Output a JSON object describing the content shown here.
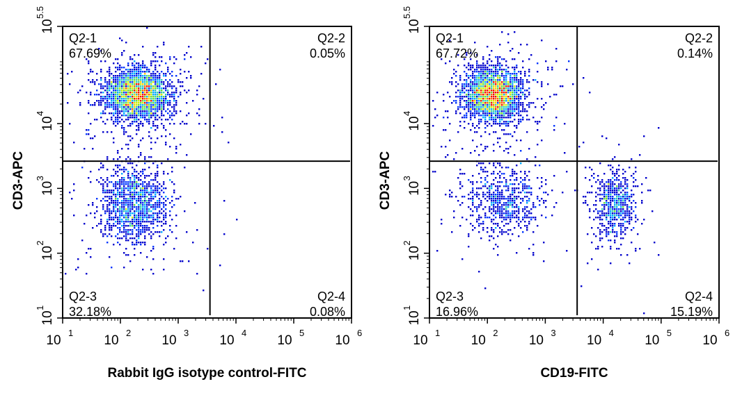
{
  "chart_data": [
    {
      "type": "scatter",
      "subtype": "flow-cytometry-density-dot-plot",
      "xlabel": "Rabbit IgG isotype control-FITC",
      "ylabel": "CD3-APC",
      "xscale": "log10",
      "yscale": "log10",
      "xlim_exp": [
        1,
        6
      ],
      "ylim_exp": [
        1,
        5.5
      ],
      "x_ticks": [
        {
          "base": "10",
          "exp": "1"
        },
        {
          "base": "10",
          "exp": "2"
        },
        {
          "base": "10",
          "exp": "3"
        },
        {
          "base": "10",
          "exp": "4"
        },
        {
          "base": "10",
          "exp": "5"
        },
        {
          "base": "10",
          "exp": "6"
        }
      ],
      "y_ticks": [
        {
          "base": "10",
          "exp": "1"
        },
        {
          "base": "10",
          "exp": "2"
        },
        {
          "base": "10",
          "exp": "3"
        },
        {
          "base": "10",
          "exp": "4"
        },
        {
          "base": "10",
          "exp": "5.5"
        }
      ],
      "gate_x_exp": 3.55,
      "gate_y_exp": 3.42,
      "quadrants": [
        {
          "name": "Q2-1",
          "percent": "67.69%",
          "pos": "top-left"
        },
        {
          "name": "Q2-2",
          "percent": "0.05%",
          "pos": "top-right"
        },
        {
          "name": "Q2-3",
          "percent": "32.18%",
          "pos": "bottom-left"
        },
        {
          "name": "Q2-4",
          "percent": "0.08%",
          "pos": "bottom-right"
        }
      ],
      "clusters": [
        {
          "cx": 2.3,
          "cy": 4.45,
          "sx": 0.28,
          "sy": 0.2,
          "n": 2600
        },
        {
          "cx": 2.25,
          "cy": 2.75,
          "sx": 0.3,
          "sy": 0.3,
          "n": 1300
        }
      ],
      "seed": 7
    },
    {
      "type": "scatter",
      "subtype": "flow-cytometry-density-dot-plot",
      "xlabel": "CD19-FITC",
      "ylabel": "CD3-APC",
      "xscale": "log10",
      "yscale": "log10",
      "xlim_exp": [
        1,
        6
      ],
      "ylim_exp": [
        1,
        5.5
      ],
      "x_ticks": [
        {
          "base": "10",
          "exp": "1"
        },
        {
          "base": "10",
          "exp": "2"
        },
        {
          "base": "10",
          "exp": "3"
        },
        {
          "base": "10",
          "exp": "4"
        },
        {
          "base": "10",
          "exp": "5"
        },
        {
          "base": "10",
          "exp": "6"
        }
      ],
      "y_ticks": [
        {
          "base": "10",
          "exp": "1"
        },
        {
          "base": "10",
          "exp": "2"
        },
        {
          "base": "10",
          "exp": "3"
        },
        {
          "base": "10",
          "exp": "4"
        },
        {
          "base": "10",
          "exp": "5.5"
        }
      ],
      "gate_x_exp": 3.55,
      "gate_y_exp": 3.42,
      "quadrants": [
        {
          "name": "Q2-1",
          "percent": "67.72%",
          "pos": "top-left"
        },
        {
          "name": "Q2-2",
          "percent": "0.14%",
          "pos": "top-right"
        },
        {
          "name": "Q2-3",
          "percent": "16.96%",
          "pos": "bottom-left"
        },
        {
          "name": "Q2-4",
          "percent": "15.19%",
          "pos": "bottom-right"
        }
      ],
      "clusters": [
        {
          "cx": 2.1,
          "cy": 4.45,
          "sx": 0.25,
          "sy": 0.2,
          "n": 2600
        },
        {
          "cx": 2.3,
          "cy": 2.8,
          "sx": 0.35,
          "sy": 0.28,
          "n": 700
        },
        {
          "cx": 4.2,
          "cy": 2.75,
          "sx": 0.18,
          "sy": 0.25,
          "n": 650
        }
      ],
      "seed": 13
    }
  ]
}
